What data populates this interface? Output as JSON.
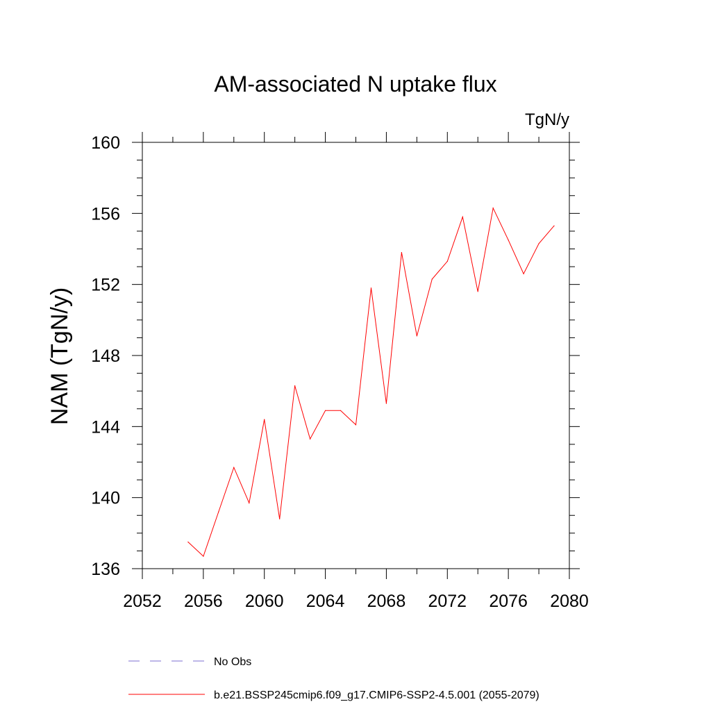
{
  "chart_data": {
    "type": "line",
    "title": "AM-associated N uptake flux",
    "units_label": "TgN/y",
    "xlabel": "",
    "ylabel": "NAM  (TgN/y)",
    "xlim": [
      2052,
      2080
    ],
    "ylim": [
      136,
      160
    ],
    "xticks": [
      2052,
      2056,
      2060,
      2064,
      2068,
      2072,
      2076,
      2080
    ],
    "yticks": [
      136,
      140,
      144,
      148,
      152,
      156,
      160
    ],
    "x_minor_step": 2,
    "y_minor_step": 1,
    "series": [
      {
        "name": "b.e21.BSSP245cmip6.f09_g17.CMIP6-SSP2-4.5.001 (2055-2079)",
        "color": "#ff0000",
        "dash": "solid",
        "x": [
          2055,
          2056,
          2057,
          2058,
          2059,
          2060,
          2061,
          2062,
          2063,
          2064,
          2065,
          2066,
          2067,
          2068,
          2069,
          2070,
          2071,
          2072,
          2073,
          2074,
          2075,
          2076,
          2077,
          2078,
          2079
        ],
        "y": [
          137.5,
          136.7,
          139.2,
          141.7,
          139.7,
          144.4,
          138.8,
          146.3,
          143.3,
          144.9,
          144.9,
          144.1,
          151.8,
          145.3,
          153.8,
          149.1,
          152.3,
          153.3,
          155.8,
          151.6,
          156.3,
          154.5,
          152.6,
          154.3,
          155.3
        ]
      }
    ],
    "legend": [
      {
        "label": "No Obs",
        "color": "#7b6fd0",
        "dash": "dashed"
      },
      {
        "label": "b.e21.BSSP245cmip6.f09_g17.CMIP6-SSP2-4.5.001 (2055-2079)",
        "color": "#ff0000",
        "dash": "solid"
      }
    ],
    "legend_position": "bottom"
  }
}
